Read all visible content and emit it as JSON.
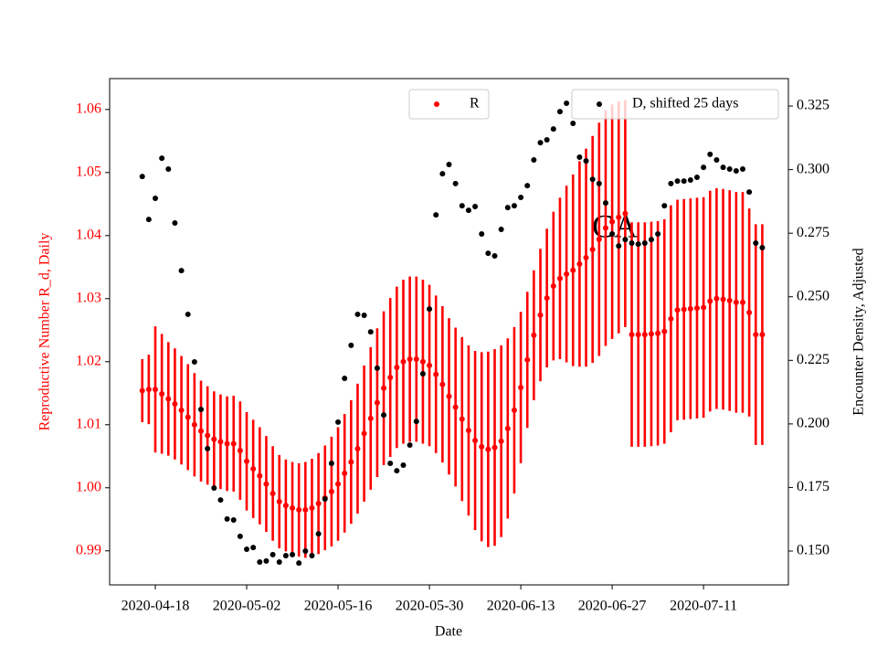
{
  "chart_data": {
    "type": "scatter",
    "annotation": "CA",
    "x": [
      "2020-04-16",
      "2020-04-17",
      "2020-04-18",
      "2020-04-19",
      "2020-04-20",
      "2020-04-21",
      "2020-04-22",
      "2020-04-23",
      "2020-04-24",
      "2020-04-25",
      "2020-04-26",
      "2020-04-27",
      "2020-04-28",
      "2020-04-29",
      "2020-04-30",
      "2020-05-01",
      "2020-05-02",
      "2020-05-03",
      "2020-05-04",
      "2020-05-05",
      "2020-05-06",
      "2020-05-07",
      "2020-05-08",
      "2020-05-09",
      "2020-05-10",
      "2020-05-11",
      "2020-05-12",
      "2020-05-13",
      "2020-05-14",
      "2020-05-15",
      "2020-05-16",
      "2020-05-17",
      "2020-05-18",
      "2020-05-19",
      "2020-05-20",
      "2020-05-21",
      "2020-05-22",
      "2020-05-23",
      "2020-05-24",
      "2020-05-25",
      "2020-05-26",
      "2020-05-27",
      "2020-05-28",
      "2020-05-29",
      "2020-05-30",
      "2020-05-31",
      "2020-06-01",
      "2020-06-02",
      "2020-06-03",
      "2020-06-04",
      "2020-06-05",
      "2020-06-06",
      "2020-06-07",
      "2020-06-08",
      "2020-06-09",
      "2020-06-10",
      "2020-06-11",
      "2020-06-12",
      "2020-06-13",
      "2020-06-14",
      "2020-06-15",
      "2020-06-16",
      "2020-06-17",
      "2020-06-18",
      "2020-06-19",
      "2020-06-20",
      "2020-06-21",
      "2020-06-22",
      "2020-06-23",
      "2020-06-24",
      "2020-06-25",
      "2020-06-26",
      "2020-06-27",
      "2020-06-28",
      "2020-06-29",
      "2020-06-30",
      "2020-07-01",
      "2020-07-02",
      "2020-07-03",
      "2020-07-04",
      "2020-07-05",
      "2020-07-06",
      "2020-07-07",
      "2020-07-08",
      "2020-07-09",
      "2020-07-10",
      "2020-07-11",
      "2020-07-12",
      "2020-07-13",
      "2020-07-14",
      "2020-07-15",
      "2020-07-16",
      "2020-07-17",
      "2020-07-18",
      "2020-07-19",
      "2020-07-20"
    ],
    "xlim": [
      "2020-04-11",
      "2020-07-24"
    ],
    "xticks": [
      "2020-04-18",
      "2020-05-02",
      "2020-05-16",
      "2020-05-30",
      "2020-06-13",
      "2020-06-27",
      "2020-07-11"
    ],
    "xlabel": "Date",
    "ylabel": "Reproductive Number R_d, Daily",
    "y2label": "Encounter Density, Adjusted",
    "ylim": [
      0.9846,
      1.0649
    ],
    "yticks": [
      0.99,
      {
        "value": 1,
        "label": "1.00"
      },
      1.01,
      1.02,
      1.03,
      1.04,
      1.05,
      1.06
    ],
    "y2lim": [
      0.1367,
      0.3358
    ],
    "y2ticks": [
      {
        "value": 0.15,
        "label": "0.150"
      },
      0.175,
      {
        "value": 0.2,
        "label": "0.200"
      },
      0.225,
      {
        "value": 0.25,
        "label": "0.250"
      },
      0.275,
      {
        "value": 0.3,
        "label": "0.300"
      },
      0.325
    ],
    "series": [
      {
        "name": "R",
        "color": "#ff0000",
        "legend": "upper center",
        "values": [
          1.0154,
          1.0156,
          1.0156,
          1.0149,
          1.0141,
          1.0133,
          1.0123,
          1.0112,
          1.01,
          1.009,
          1.0083,
          1.0077,
          1.0073,
          1.007,
          1.007,
          1.0059,
          1.0042,
          1.003,
          1.0019,
          1.0006,
          0.9991,
          0.9978,
          0.9972,
          0.9968,
          0.9965,
          0.9965,
          0.9968,
          0.9975,
          0.9984,
          0.9994,
          1.0006,
          1.0023,
          1.0041,
          1.0062,
          1.0086,
          1.011,
          1.0135,
          1.0158,
          1.0175,
          1.0191,
          1.02,
          1.0204,
          1.0204,
          1.02,
          1.0194,
          1.018,
          1.0164,
          1.0145,
          1.0128,
          1.0109,
          1.0091,
          1.0075,
          1.0065,
          1.0061,
          1.0064,
          1.0074,
          1.0094,
          1.0123,
          1.0159,
          1.0203,
          1.0242,
          1.0274,
          1.0301,
          1.032,
          1.0332,
          1.0339,
          1.0345,
          1.0355,
          1.0365,
          1.0378,
          1.0394,
          1.0412,
          1.0422,
          1.0429,
          1.0435,
          1.0243,
          1.0243,
          1.0243,
          1.0244,
          1.0245,
          1.0248,
          1.0268,
          1.0282,
          1.0283,
          1.0284,
          1.0285,
          1.0286,
          1.0296,
          1.03,
          1.0299,
          1.0297,
          1.0294,
          1.0294,
          1.0278,
          1.0243,
          1.0243
        ],
        "errors": [
          0.005,
          0.0055,
          0.01,
          0.0095,
          0.009,
          0.0088,
          0.0086,
          0.0084,
          0.0082,
          0.008,
          0.0078,
          0.0076,
          0.0075,
          0.0075,
          0.0076,
          0.0078,
          0.0078,
          0.0078,
          0.0077,
          0.0076,
          0.0075,
          0.0074,
          0.0073,
          0.0073,
          0.0074,
          0.0076,
          0.0078,
          0.008,
          0.0083,
          0.0087,
          0.009,
          0.0094,
          0.0098,
          0.0103,
          0.0108,
          0.0113,
          0.0118,
          0.0122,
          0.0126,
          0.0128,
          0.013,
          0.0131,
          0.0131,
          0.013,
          0.0128,
          0.0125,
          0.0124,
          0.0124,
          0.0126,
          0.013,
          0.0135,
          0.0142,
          0.015,
          0.0155,
          0.0156,
          0.0152,
          0.0143,
          0.0132,
          0.012,
          0.0108,
          0.0103,
          0.0105,
          0.011,
          0.0118,
          0.0128,
          0.014,
          0.0152,
          0.0163,
          0.0173,
          0.018,
          0.0185,
          0.0187,
          0.0186,
          0.0184,
          0.018,
          0.0178,
          0.0178,
          0.0178,
          0.0178,
          0.0178,
          0.0178,
          0.018,
          0.0175,
          0.0175,
          0.0175,
          0.0175,
          0.0175,
          0.0175,
          0.0175,
          0.0175,
          0.0175,
          0.0175,
          0.0175,
          0.0165,
          0.0175,
          0.0175
        ]
      },
      {
        "name": "D, shifted 25 days",
        "color": "#000000",
        "axis": "y2",
        "legend": "upper right",
        "values": [
          0.2973,
          0.2804,
          0.2887,
          0.3045,
          0.3002,
          0.279,
          0.2603,
          0.2431,
          0.2244,
          0.2057,
          0.1903,
          0.1748,
          0.1701,
          0.1626,
          0.1622,
          0.1558,
          0.1507,
          0.1514,
          0.1457,
          0.1461,
          0.1486,
          0.1457,
          0.1482,
          0.1486,
          0.1453,
          0.15,
          0.1482,
          0.1568,
          0.1705,
          0.1845,
          0.2007,
          0.2179,
          0.2309,
          0.2431,
          0.2427,
          0.2362,
          0.2219,
          0.2035,
          0.1845,
          0.1816,
          0.1838,
          0.1917,
          0.201,
          0.2197,
          0.2452,
          0.2822,
          0.2984,
          0.302,
          0.2945,
          0.2858,
          0.284,
          0.2855,
          0.2747,
          0.2671,
          0.2661,
          0.2765,
          0.2851,
          0.2858,
          0.2891,
          0.2937,
          0.3038,
          0.3106,
          0.3117,
          0.316,
          0.3228,
          0.3261,
          0.3182,
          0.3049,
          0.3034,
          0.2962,
          0.2945,
          0.2869,
          0.2747,
          0.27,
          0.2725,
          0.2711,
          0.2707,
          0.2711,
          0.2725,
          0.2747,
          0.2858,
          0.2945,
          0.2955,
          0.2955,
          0.2959,
          0.297,
          0.3009,
          0.306,
          0.3038,
          0.3009,
          0.3002,
          0.2995,
          0.3002,
          0.2912,
          0.2711,
          0.2693
        ]
      }
    ]
  }
}
